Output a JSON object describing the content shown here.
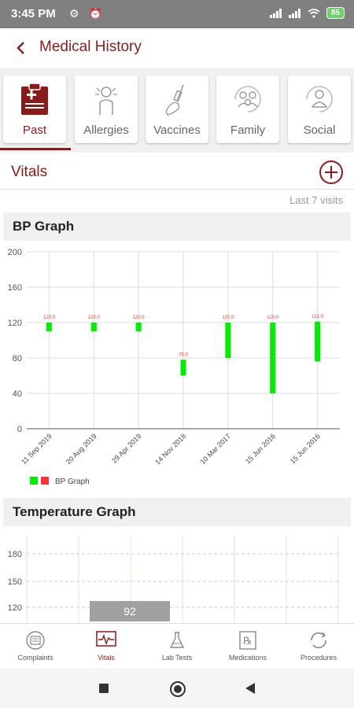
{
  "status": {
    "time": "3:45 PM",
    "battery": "85"
  },
  "appbar": {
    "title": "Medical History"
  },
  "tabs": [
    {
      "label": "Past",
      "icon": "clipboard-icon"
    },
    {
      "label": "Allergies",
      "icon": "allergy-person-icon"
    },
    {
      "label": "Vaccines",
      "icon": "syringe-hand-icon"
    },
    {
      "label": "Family",
      "icon": "family-icon"
    },
    {
      "label": "Social",
      "icon": "social-person-icon"
    }
  ],
  "vitals": {
    "title": "Vitals",
    "last_visits": "Last 7 visits"
  },
  "bp": {
    "title": "BP Graph",
    "legend": "BP Graph"
  },
  "temp": {
    "title": "Temperature Graph",
    "tooltip": "92"
  },
  "colors": {
    "accent": "#8b1a1a",
    "bar": "#00ee00",
    "label_red": "#ff3333"
  },
  "chart_data": [
    {
      "type": "bar",
      "title": "BP Graph",
      "categories": [
        "11 Sep 2019",
        "20 Aug 2019",
        "29 Apr 2019",
        "14 Nov 2018",
        "10 Mar 2017",
        "15 Jun 2016",
        "15 Jun 2016"
      ],
      "series": [
        {
          "name": "BP Graph",
          "low": [
            110,
            110,
            110,
            60,
            80,
            40,
            76
          ],
          "high": [
            120,
            120,
            120,
            78,
            120,
            120,
            121
          ],
          "labels": [
            "120.0",
            "120.0",
            "120.0",
            "78.0",
            "120.0",
            "120.0",
            "121.0"
          ]
        }
      ],
      "ylim": [
        0,
        200
      ],
      "yticks": [
        0,
        40,
        80,
        120,
        160,
        200
      ],
      "legend": "bottom-left",
      "grid": true
    },
    {
      "type": "line",
      "title": "Temperature Graph",
      "yticks": [
        120,
        150,
        180
      ],
      "grid": true
    }
  ],
  "nav": [
    {
      "label": "Complaints",
      "icon": "complaints-icon"
    },
    {
      "label": "Vitals",
      "icon": "vitals-icon"
    },
    {
      "label": "Lab Tests",
      "icon": "flask-icon"
    },
    {
      "label": "Medications",
      "icon": "rx-icon"
    },
    {
      "label": "Procedures",
      "icon": "procedures-icon"
    }
  ]
}
